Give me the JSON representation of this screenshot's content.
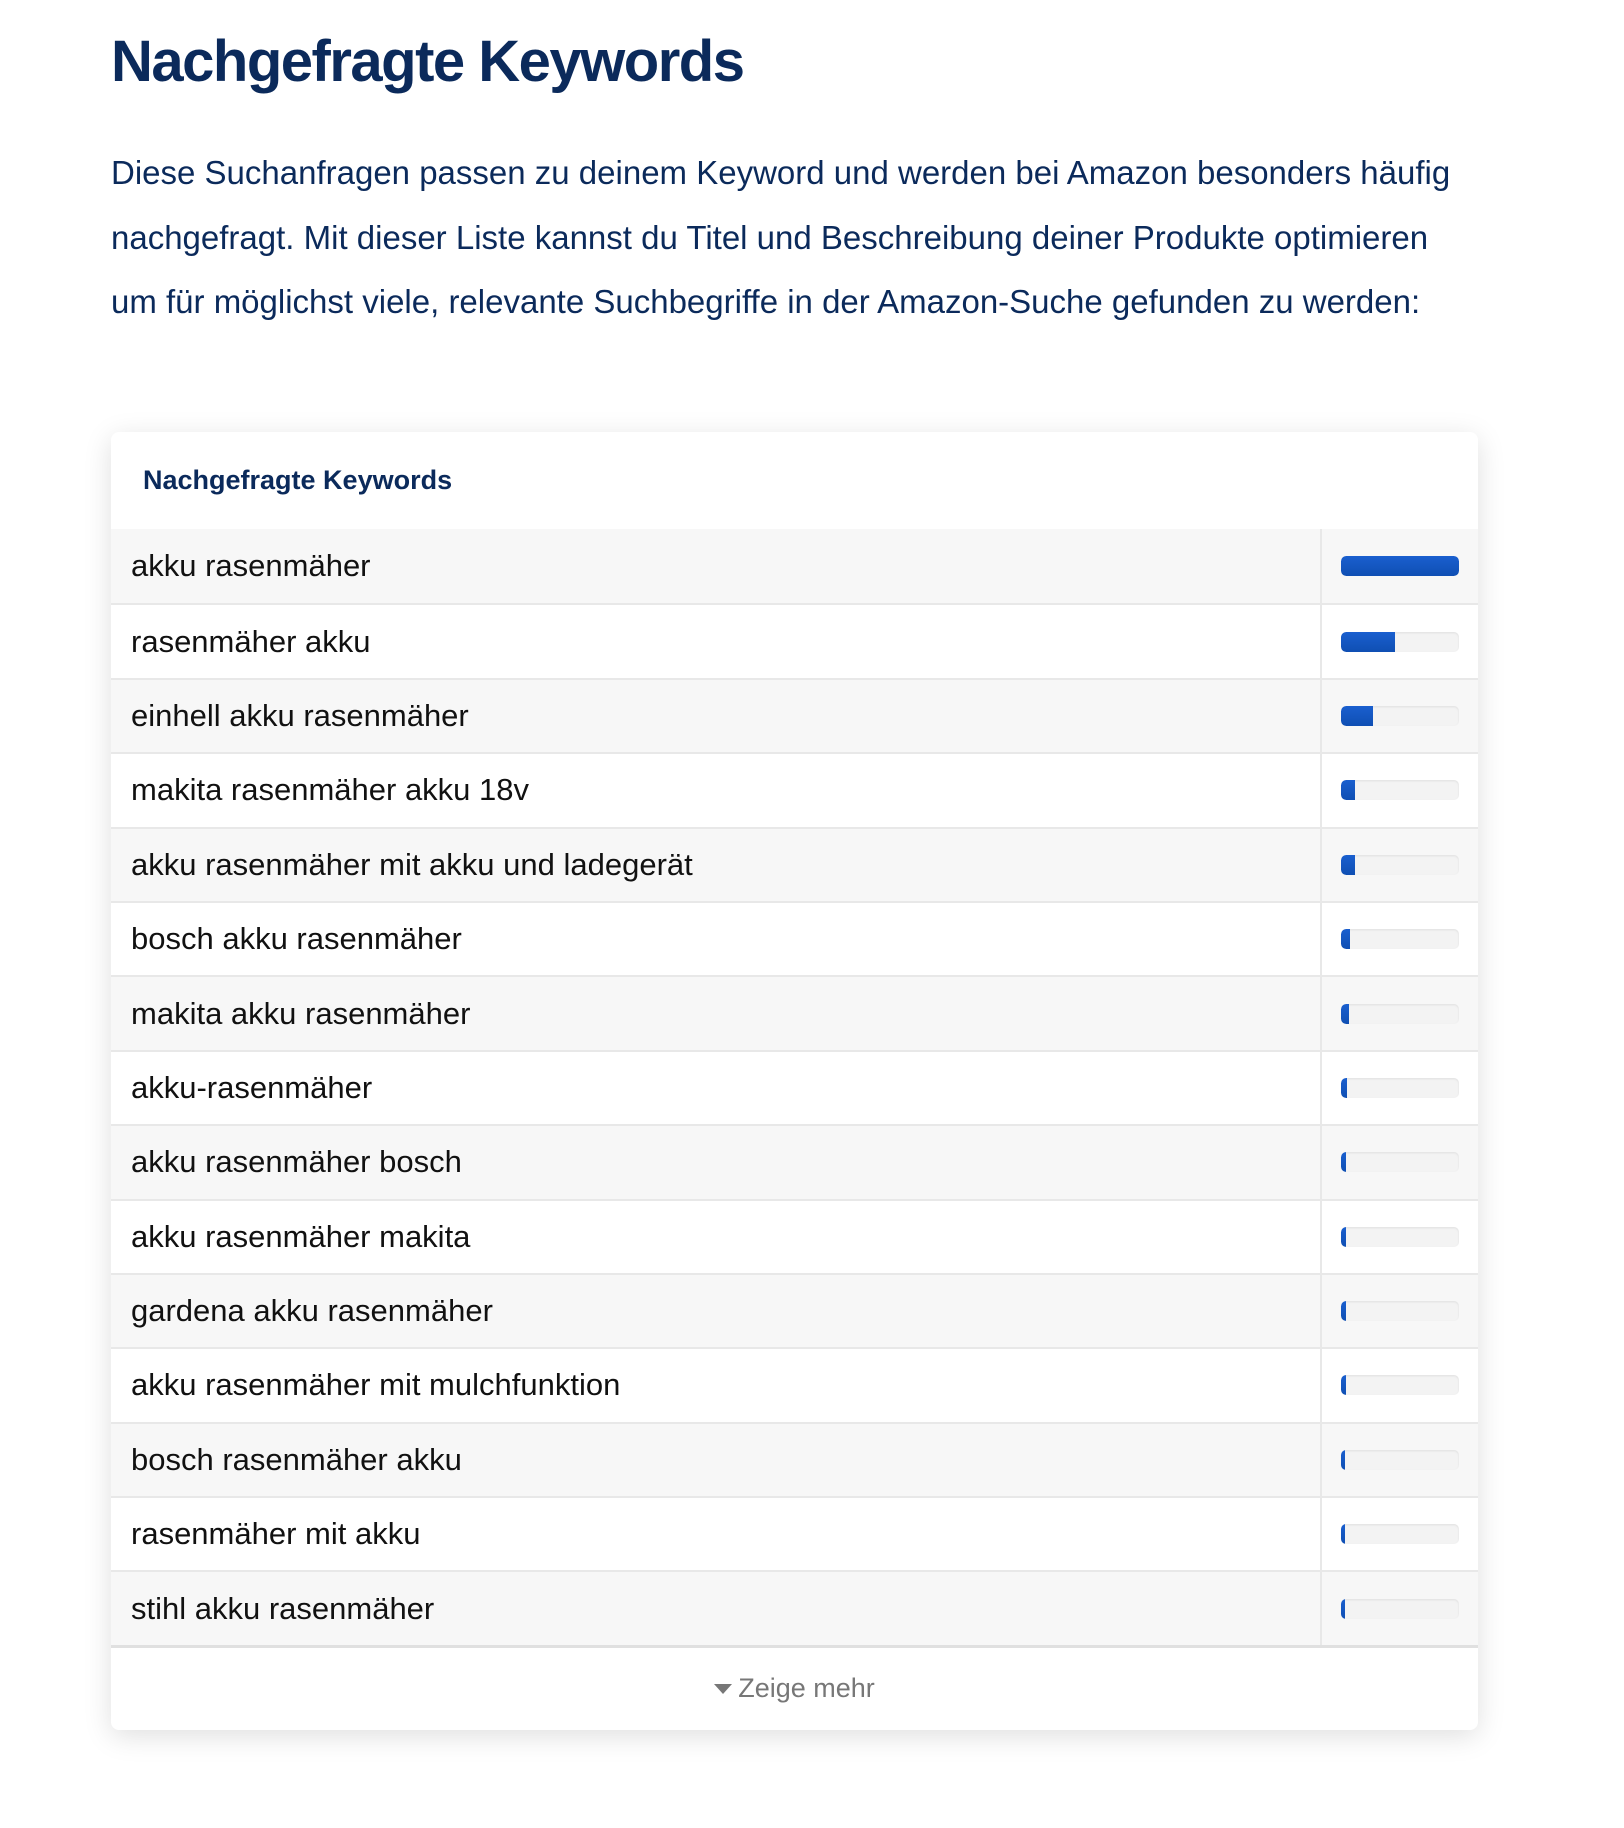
{
  "page": {
    "title": "Nachgefragte Keywords",
    "intro": "Diese Suchanfragen passen zu deinem Keyword und werden bei Amazon besonders häufig nachgefragt. Mit dieser Liste kannst du Titel und Beschreibung deiner Produkte optimieren um für möglichst viele, relevante Suchbegriffe in der Amazon-Suche gefunden zu werden:"
  },
  "card": {
    "header": "Nachgefragte Keywords",
    "bar_color": "#1558c4",
    "rows": [
      {
        "keyword": "akku rasenmäher",
        "popularity": 100
      },
      {
        "keyword": "rasenmäher akku",
        "popularity": 46
      },
      {
        "keyword": "einhell akku rasenmäher",
        "popularity": 27
      },
      {
        "keyword": "makita rasenmäher akku 18v",
        "popularity": 12
      },
      {
        "keyword": "akku rasenmäher mit akku und ladegerät",
        "popularity": 12
      },
      {
        "keyword": "bosch akku rasenmäher",
        "popularity": 8
      },
      {
        "keyword": "makita akku rasenmäher",
        "popularity": 7
      },
      {
        "keyword": "akku-rasenmäher",
        "popularity": 5
      },
      {
        "keyword": "akku rasenmäher bosch",
        "popularity": 4
      },
      {
        "keyword": "akku rasenmäher makita",
        "popularity": 4
      },
      {
        "keyword": "gardena akku rasenmäher",
        "popularity": 4
      },
      {
        "keyword": "akku rasenmäher mit mulchfunktion",
        "popularity": 4
      },
      {
        "keyword": "bosch rasenmäher akku",
        "popularity": 3
      },
      {
        "keyword": "rasenmäher mit akku",
        "popularity": 3
      },
      {
        "keyword": "stihl akku rasenmäher",
        "popularity": 3
      }
    ],
    "show_more": "Zeige mehr",
    "show_more_icon": "caret-down-icon"
  }
}
